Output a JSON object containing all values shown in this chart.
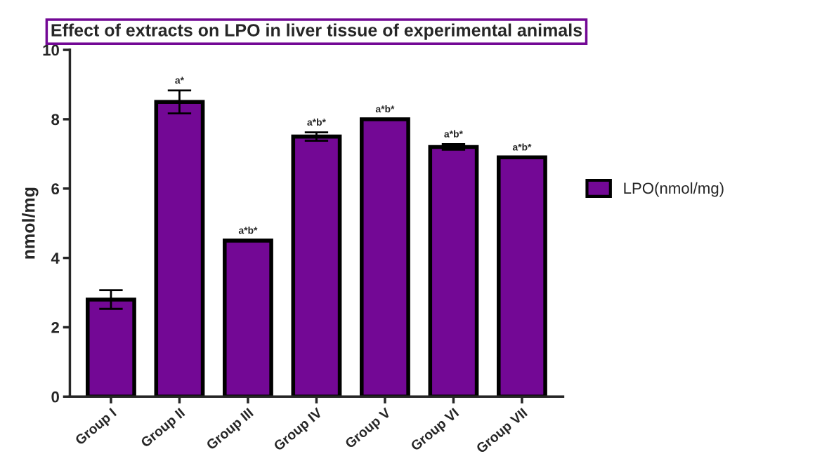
{
  "chart_data": {
    "type": "bar",
    "title": "Effect of extracts on LPO in liver tissue of experimental animals",
    "ylabel": "nmol/mg",
    "categories": [
      "Group I",
      "Group II",
      "Group III",
      "Group IV",
      "Group V",
      "Group VI",
      "Group VII"
    ],
    "series": [
      {
        "name": "LPO(nmol/mg)",
        "color": "#730895",
        "values": [
          2.8,
          8.5,
          4.5,
          7.5,
          8.0,
          7.2,
          6.9
        ],
        "errors": [
          0.27,
          0.33,
          null,
          0.12,
          null,
          0.08,
          null
        ]
      }
    ],
    "ylim": [
      0,
      10
    ],
    "yticks": [
      0,
      2,
      4,
      6,
      8,
      10
    ],
    "grid": false,
    "legend": "right",
    "annotations": [
      {
        "text": "a*",
        "x": "Group II",
        "y": 8.83
      },
      {
        "text": "a*b*",
        "x": "Group III",
        "y": 4.5
      },
      {
        "text": "a*b*",
        "x": "Group IV",
        "y": 7.62
      },
      {
        "text": "a*b*",
        "x": "Group V",
        "y": 8.0
      },
      {
        "text": "a*b*",
        "x": "Group VI",
        "y": 7.28
      },
      {
        "text": "a*b*",
        "x": "Group VII",
        "y": 6.9
      }
    ]
  }
}
